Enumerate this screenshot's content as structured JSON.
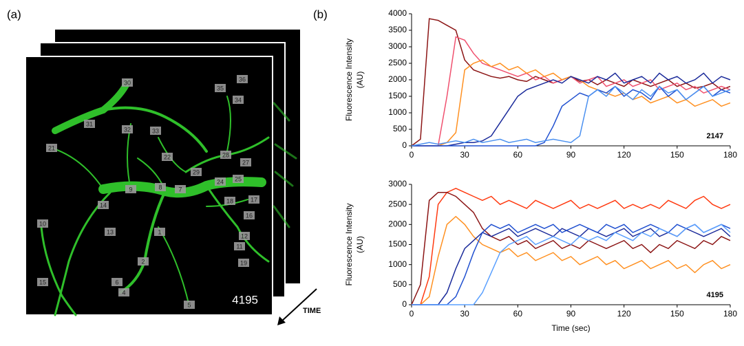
{
  "panel_a": {
    "label": "(a)",
    "frame_label": "4195",
    "time_label": "TIME",
    "roi_labels": [
      "30",
      "35",
      "36",
      "34",
      "31",
      "32",
      "33",
      "21",
      "22",
      "28",
      "27",
      "29",
      "24",
      "25",
      "9",
      "8",
      "7",
      "14",
      "18",
      "17",
      "16",
      "13",
      "1",
      "12",
      "10",
      "11",
      "2",
      "19",
      "6",
      "4",
      "15",
      "5"
    ]
  },
  "panel_b_label": "(b)",
  "chart_data": [
    {
      "type": "line",
      "ylabel": [
        "Fluorescence Intensity",
        "(AU)"
      ],
      "annotation": "2147",
      "x": [
        0,
        5,
        10,
        15,
        20,
        25,
        30,
        35,
        40,
        45,
        50,
        55,
        60,
        65,
        70,
        75,
        80,
        85,
        90,
        95,
        100,
        105,
        110,
        115,
        120,
        125,
        130,
        135,
        140,
        145,
        150,
        155,
        160,
        165,
        170,
        175,
        180
      ],
      "xlim": [
        0,
        180
      ],
      "xticks": [
        0,
        30,
        60,
        90,
        120,
        150,
        180
      ],
      "ylim": [
        0,
        4000
      ],
      "yticks": [
        0,
        500,
        1000,
        1500,
        2000,
        2500,
        3000,
        3500,
        4000
      ],
      "series": [
        {
          "color": "#8b1414",
          "values": [
            0,
            200,
            3850,
            3800,
            3650,
            3500,
            2600,
            2300,
            2200,
            2100,
            2050,
            2100,
            2000,
            1950,
            2100,
            2000,
            1900,
            2000,
            2100,
            1950,
            2000,
            1850,
            2000,
            1900,
            1800,
            2000,
            1900,
            1800,
            1900,
            2000,
            1800,
            1900,
            1750,
            1800,
            1900,
            1700,
            1800
          ]
        },
        {
          "color": "#f0506e",
          "values": [
            0,
            0,
            0,
            0,
            1500,
            3300,
            3200,
            2800,
            2500,
            2400,
            2300,
            2200,
            2100,
            2200,
            2000,
            2100,
            1900,
            2000,
            2100,
            1900,
            2000,
            2100,
            1800,
            1900,
            2000,
            1800,
            1900,
            2000,
            1700,
            1800,
            1900,
            1700,
            1800,
            1600,
            1700,
            1800,
            1700
          ]
        },
        {
          "color": "#ff9020",
          "values": [
            0,
            0,
            0,
            0,
            100,
            400,
            2300,
            2500,
            2600,
            2400,
            2500,
            2300,
            2400,
            2200,
            2300,
            2100,
            2200,
            2000,
            2100,
            2000,
            1800,
            1700,
            1600,
            1500,
            1600,
            1400,
            1500,
            1300,
            1400,
            1500,
            1300,
            1400,
            1200,
            1300,
            1400,
            1200,
            1300
          ]
        },
        {
          "color": "#1a2a9a",
          "values": [
            0,
            0,
            0,
            0,
            0,
            50,
            100,
            100,
            150,
            300,
            700,
            1100,
            1500,
            1700,
            1800,
            1900,
            2000,
            1900,
            2100,
            2000,
            1900,
            2100,
            2000,
            2200,
            1900,
            2000,
            2100,
            1900,
            2200,
            2000,
            2100,
            1900,
            2000,
            2200,
            1900,
            2100,
            2000
          ]
        },
        {
          "color": "#2050d0",
          "values": [
            0,
            0,
            0,
            0,
            0,
            0,
            0,
            0,
            0,
            0,
            0,
            0,
            0,
            0,
            0,
            100,
            600,
            1200,
            1400,
            1600,
            1500,
            1700,
            1600,
            1800,
            1500,
            1700,
            1600,
            1400,
            1800,
            1500,
            1700,
            1400,
            1600,
            1800,
            1500,
            1700,
            1600
          ]
        },
        {
          "color": "#4a90f0",
          "values": [
            0,
            50,
            100,
            50,
            100,
            150,
            100,
            200,
            100,
            150,
            200,
            100,
            150,
            200,
            100,
            150,
            200,
            150,
            100,
            300,
            1500,
            1700,
            1500,
            1800,
            1600,
            1400,
            1700,
            1500,
            1800,
            1600,
            1700,
            1400,
            1600,
            1800,
            1500,
            1600,
            1700
          ]
        }
      ]
    },
    {
      "type": "line",
      "ylabel": [
        "Fluorescence Intensity",
        "(AU)"
      ],
      "annotation": "4195",
      "xlabel": "Time (sec)",
      "x": [
        0,
        5,
        10,
        15,
        20,
        25,
        30,
        35,
        40,
        45,
        50,
        55,
        60,
        65,
        70,
        75,
        80,
        85,
        90,
        95,
        100,
        105,
        110,
        115,
        120,
        125,
        130,
        135,
        140,
        145,
        150,
        155,
        160,
        165,
        170,
        175,
        180
      ],
      "xlim": [
        0,
        180
      ],
      "xticks": [
        0,
        30,
        60,
        90,
        120,
        150,
        180
      ],
      "ylim": [
        0,
        3000
      ],
      "yticks": [
        0,
        500,
        1000,
        1500,
        2000,
        2500,
        3000
      ],
      "series": [
        {
          "color": "#ff3a10",
          "values": [
            0,
            0,
            700,
            2500,
            2800,
            2900,
            2800,
            2700,
            2600,
            2700,
            2500,
            2600,
            2500,
            2400,
            2600,
            2500,
            2400,
            2500,
            2600,
            2400,
            2500,
            2400,
            2500,
            2600,
            2400,
            2500,
            2400,
            2500,
            2400,
            2600,
            2500,
            2400,
            2600,
            2700,
            2500,
            2400,
            2500
          ]
        },
        {
          "color": "#8b1414",
          "values": [
            0,
            500,
            2600,
            2800,
            2800,
            2700,
            2500,
            2300,
            1900,
            1700,
            1600,
            1700,
            1500,
            1600,
            1400,
            1500,
            1600,
            1400,
            1500,
            1400,
            1600,
            1500,
            1400,
            1500,
            1600,
            1400,
            1500,
            1300,
            1500,
            1400,
            1600,
            1500,
            1400,
            1600,
            1500,
            1700,
            1600
          ]
        },
        {
          "color": "#ff9020",
          "values": [
            0,
            0,
            200,
            1200,
            2000,
            2200,
            2000,
            1700,
            1500,
            1400,
            1300,
            1400,
            1200,
            1300,
            1100,
            1200,
            1300,
            1100,
            1200,
            1000,
            1100,
            1200,
            1000,
            1100,
            900,
            1000,
            1100,
            900,
            1000,
            1100,
            900,
            1000,
            800,
            1000,
            1100,
            900,
            1000
          ]
        },
        {
          "color": "#1a2a9a",
          "values": [
            0,
            0,
            0,
            0,
            300,
            900,
            1400,
            1600,
            1800,
            1700,
            1800,
            1900,
            1700,
            1800,
            1900,
            1800,
            1700,
            1900,
            1800,
            1700,
            1900,
            1800,
            1700,
            1800,
            1900,
            1700,
            1800,
            1900,
            1700,
            1800,
            1700,
            1900,
            1800,
            1700,
            1800,
            1900,
            1700
          ]
        },
        {
          "color": "#2050d0",
          "values": [
            0,
            0,
            0,
            0,
            0,
            200,
            700,
            1300,
            1800,
            2000,
            1900,
            2000,
            1800,
            1900,
            2000,
            1900,
            2000,
            1800,
            1900,
            2000,
            1900,
            1800,
            2000,
            1900,
            2000,
            1800,
            1900,
            2000,
            1900,
            1800,
            2000,
            1900,
            2000,
            1800,
            1900,
            2000,
            1900
          ]
        },
        {
          "color": "#5aa0ff",
          "values": [
            0,
            0,
            0,
            0,
            0,
            0,
            0,
            0,
            300,
            800,
            1300,
            1500,
            1600,
            1700,
            1500,
            1600,
            1700,
            1600,
            1500,
            1700,
            1600,
            1700,
            1600,
            1800,
            1700,
            1600,
            1800,
            1700,
            1900,
            1800,
            1700,
            1900,
            2000,
            1800,
            1900,
            2000,
            1800
          ]
        }
      ]
    }
  ]
}
